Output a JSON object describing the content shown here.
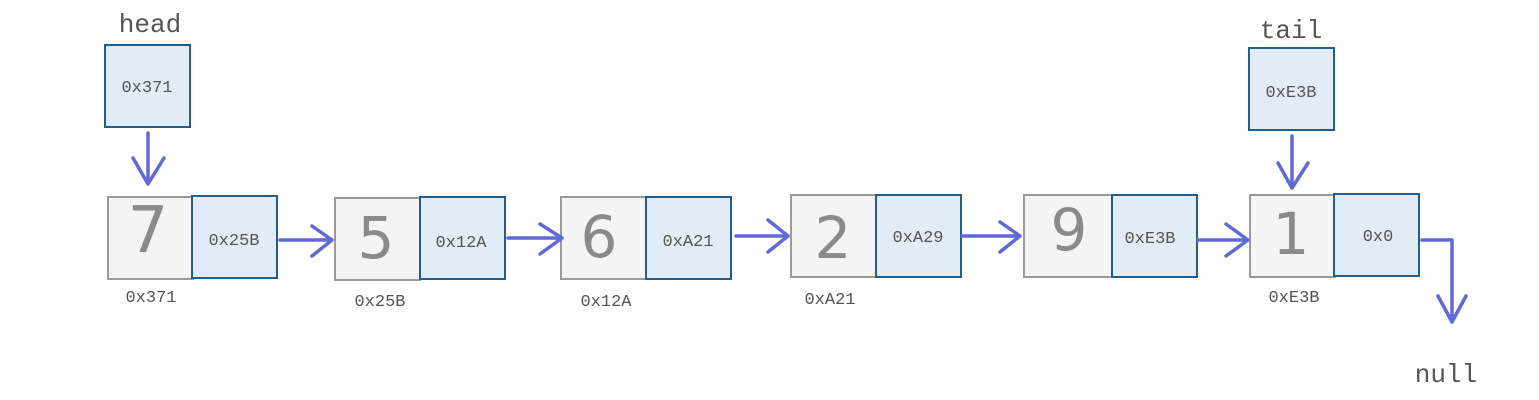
{
  "pointers": {
    "head": {
      "label": "head",
      "value": "0x371"
    },
    "tail": {
      "label": "tail",
      "value": "0xE3B"
    }
  },
  "nodes": [
    {
      "value": "7",
      "next": "0x25B",
      "address": "0x371"
    },
    {
      "value": "5",
      "next": "0x12A",
      "address": "0x25B"
    },
    {
      "value": "6",
      "next": "0xA21",
      "address": "0x12A"
    },
    {
      "value": "2",
      "next": "0xA29",
      "address": "0xA21"
    },
    {
      "value": "9",
      "next": "0xE3B",
      "address": ""
    },
    {
      "value": "1",
      "next": "0x0",
      "address": "0xE3B"
    }
  ],
  "terminal": "null",
  "colors": {
    "arrow": "#6068dc",
    "pointer_fill": "#e2ecf6",
    "pointer_stroke": "#1f5e8e",
    "value_fill": "#f4f4f4",
    "value_stroke": "#9a9a9a",
    "text": "#555555"
  }
}
